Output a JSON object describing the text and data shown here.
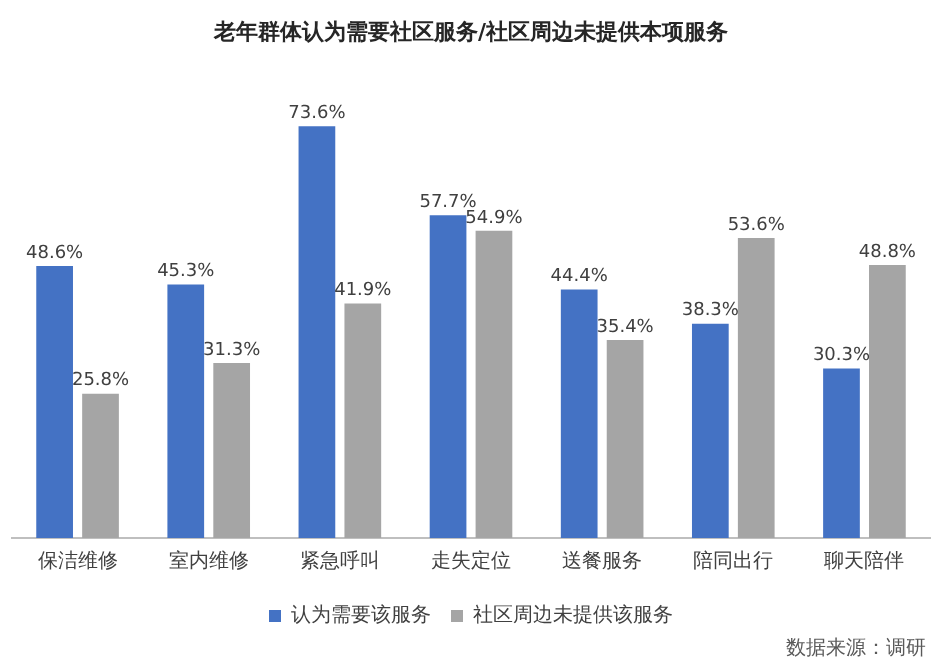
{
  "chart_data": {
    "type": "bar",
    "title": "老年群体认为需要社区服务/社区周边未提供本项服务",
    "categories": [
      "保洁维修",
      "室内维修",
      "紧急呼叫",
      "走失定位",
      "送餐服务",
      "陪同出行",
      "聊天陪伴"
    ],
    "series": [
      {
        "name": "认为需要该服务",
        "color": "#4472c4",
        "values": [
          48.6,
          45.3,
          73.6,
          57.7,
          44.4,
          38.3,
          30.3
        ],
        "value_labels": [
          "48.6%",
          "45.3%",
          "73.6%",
          "57.7%",
          "44.4%",
          "38.3%",
          "30.3%"
        ]
      },
      {
        "name": "社区周边未提供该服务",
        "color": "#a5a5a5",
        "values": [
          25.8,
          31.3,
          41.9,
          54.9,
          35.4,
          53.6,
          48.8
        ],
        "value_labels": [
          "25.8%",
          "31.3%",
          "41.9%",
          "54.9%",
          "35.4%",
          "53.6%",
          "48.8%"
        ]
      }
    ],
    "grid": false,
    "legend": "bottom",
    "annotations": [
      "数据来源：调研"
    ]
  }
}
